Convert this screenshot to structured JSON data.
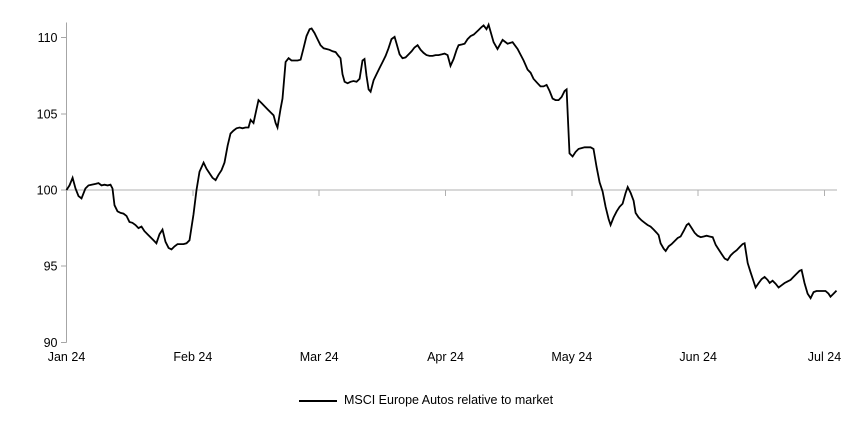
{
  "chart_data": {
    "type": "line",
    "title": "",
    "x_axis": {
      "unit": "months (Jan 2024 - Jul 2024)",
      "tick_labels": [
        "Jan 24",
        "Feb 24",
        "Mar 24",
        "Apr 24",
        "May 24",
        "Jun 24",
        "Jul 24"
      ],
      "tick_positions_months": [
        0,
        1,
        2,
        3,
        4,
        5,
        6
      ],
      "range_months": [
        0,
        6.095
      ]
    },
    "y_axis": {
      "tick_labels": [
        "90",
        "95",
        "100",
        "105",
        "110"
      ],
      "tick_values": [
        90,
        95,
        100,
        105,
        110
      ],
      "range": [
        90,
        111
      ],
      "baseline": 100
    },
    "grid": {
      "horizontal_lines_at": [
        100
      ],
      "month_ticks_on_baseline": true
    },
    "legend": {
      "position": "bottom-center",
      "items": [
        {
          "label": "MSCI Europe Autos relative to market",
          "color": "#000000",
          "marker": "line"
        }
      ]
    },
    "series": [
      {
        "name": "MSCI Europe Autos relative to market",
        "color": "#000000",
        "points": [
          [
            0.0,
            100.0
          ],
          [
            0.024,
            100.3
          ],
          [
            0.048,
            100.8
          ],
          [
            0.071,
            100.1
          ],
          [
            0.095,
            99.6
          ],
          [
            0.119,
            99.45
          ],
          [
            0.15,
            100.1
          ],
          [
            0.174,
            100.3
          ],
          [
            0.198,
            100.35
          ],
          [
            0.23,
            100.4
          ],
          [
            0.253,
            100.45
          ],
          [
            0.277,
            100.3
          ],
          [
            0.301,
            100.35
          ],
          [
            0.325,
            100.3
          ],
          [
            0.348,
            100.35
          ],
          [
            0.364,
            100.1
          ],
          [
            0.38,
            99.0
          ],
          [
            0.404,
            98.6
          ],
          [
            0.428,
            98.5
          ],
          [
            0.451,
            98.45
          ],
          [
            0.475,
            98.3
          ],
          [
            0.499,
            97.9
          ],
          [
            0.522,
            97.85
          ],
          [
            0.546,
            97.7
          ],
          [
            0.57,
            97.5
          ],
          [
            0.594,
            97.6
          ],
          [
            0.617,
            97.3
          ],
          [
            0.641,
            97.1
          ],
          [
            0.665,
            96.9
          ],
          [
            0.689,
            96.7
          ],
          [
            0.712,
            96.5
          ],
          [
            0.736,
            97.1
          ],
          [
            0.76,
            97.4
          ],
          [
            0.784,
            96.6
          ],
          [
            0.808,
            96.2
          ],
          [
            0.831,
            96.1
          ],
          [
            0.855,
            96.3
          ],
          [
            0.879,
            96.45
          ],
          [
            0.903,
            96.45
          ],
          [
            0.926,
            96.45
          ],
          [
            0.95,
            96.5
          ],
          [
            0.974,
            96.7
          ],
          [
            1.005,
            98.4
          ],
          [
            1.029,
            100.0
          ],
          [
            1.053,
            101.2
          ],
          [
            1.085,
            101.8
          ],
          [
            1.108,
            101.4
          ],
          [
            1.132,
            101.1
          ],
          [
            1.156,
            100.8
          ],
          [
            1.18,
            100.65
          ],
          [
            1.203,
            101.0
          ],
          [
            1.227,
            101.3
          ],
          [
            1.251,
            101.8
          ],
          [
            1.275,
            102.9
          ],
          [
            1.298,
            103.7
          ],
          [
            1.322,
            103.9
          ],
          [
            1.346,
            104.05
          ],
          [
            1.37,
            104.1
          ],
          [
            1.393,
            104.05
          ],
          [
            1.417,
            104.1
          ],
          [
            1.441,
            104.1
          ],
          [
            1.457,
            104.6
          ],
          [
            1.48,
            104.4
          ],
          [
            1.504,
            105.3
          ],
          [
            1.52,
            105.9
          ],
          [
            1.544,
            105.7
          ],
          [
            1.568,
            105.5
          ],
          [
            1.591,
            105.3
          ],
          [
            1.615,
            105.1
          ],
          [
            1.639,
            104.9
          ],
          [
            1.655,
            104.4
          ],
          [
            1.67,
            104.1
          ],
          [
            1.694,
            105.3
          ],
          [
            1.71,
            106.0
          ],
          [
            1.734,
            108.4
          ],
          [
            1.758,
            108.65
          ],
          [
            1.781,
            108.5
          ],
          [
            1.805,
            108.5
          ],
          [
            1.829,
            108.5
          ],
          [
            1.853,
            108.55
          ],
          [
            1.876,
            109.3
          ],
          [
            1.9,
            110.1
          ],
          [
            1.924,
            110.55
          ],
          [
            1.94,
            110.6
          ],
          [
            1.963,
            110.3
          ],
          [
            1.987,
            109.9
          ],
          [
            2.011,
            109.5
          ],
          [
            2.035,
            109.3
          ],
          [
            2.058,
            109.25
          ],
          [
            2.082,
            109.2
          ],
          [
            2.106,
            109.1
          ],
          [
            2.13,
            109.05
          ],
          [
            2.153,
            108.8
          ],
          [
            2.169,
            108.65
          ],
          [
            2.185,
            107.6
          ],
          [
            2.201,
            107.1
          ],
          [
            2.225,
            107.0
          ],
          [
            2.248,
            107.1
          ],
          [
            2.272,
            107.15
          ],
          [
            2.296,
            107.1
          ],
          [
            2.32,
            107.3
          ],
          [
            2.343,
            108.5
          ],
          [
            2.359,
            108.6
          ],
          [
            2.375,
            107.5
          ],
          [
            2.391,
            106.6
          ],
          [
            2.407,
            106.45
          ],
          [
            2.431,
            107.2
          ],
          [
            2.454,
            107.6
          ],
          [
            2.478,
            108.0
          ],
          [
            2.502,
            108.4
          ],
          [
            2.526,
            108.8
          ],
          [
            2.549,
            109.3
          ],
          [
            2.573,
            109.9
          ],
          [
            2.597,
            110.05
          ],
          [
            2.613,
            109.6
          ],
          [
            2.637,
            108.9
          ],
          [
            2.66,
            108.65
          ],
          [
            2.684,
            108.7
          ],
          [
            2.708,
            108.9
          ],
          [
            2.732,
            109.1
          ],
          [
            2.755,
            109.35
          ],
          [
            2.779,
            109.5
          ],
          [
            2.803,
            109.2
          ],
          [
            2.827,
            109.0
          ],
          [
            2.85,
            108.85
          ],
          [
            2.874,
            108.8
          ],
          [
            2.898,
            108.8
          ],
          [
            2.922,
            108.85
          ],
          [
            2.945,
            108.85
          ],
          [
            2.969,
            108.9
          ],
          [
            2.993,
            108.95
          ],
          [
            3.017,
            108.85
          ],
          [
            3.04,
            108.15
          ],
          [
            3.064,
            108.6
          ],
          [
            3.088,
            109.2
          ],
          [
            3.104,
            109.5
          ],
          [
            3.128,
            109.55
          ],
          [
            3.151,
            109.6
          ],
          [
            3.175,
            109.9
          ],
          [
            3.199,
            110.1
          ],
          [
            3.223,
            110.2
          ],
          [
            3.262,
            110.5
          ],
          [
            3.286,
            110.7
          ],
          [
            3.302,
            110.8
          ],
          [
            3.325,
            110.55
          ],
          [
            3.341,
            110.85
          ],
          [
            3.381,
            109.7
          ],
          [
            3.412,
            109.25
          ],
          [
            3.452,
            109.85
          ],
          [
            3.492,
            109.6
          ],
          [
            3.531,
            109.7
          ],
          [
            3.571,
            109.25
          ],
          [
            3.618,
            108.5
          ],
          [
            3.65,
            107.9
          ],
          [
            3.674,
            107.7
          ],
          [
            3.697,
            107.3
          ],
          [
            3.729,
            107.0
          ],
          [
            3.752,
            106.8
          ],
          [
            3.776,
            106.8
          ],
          [
            3.8,
            106.9
          ],
          [
            3.824,
            106.5
          ],
          [
            3.848,
            106.0
          ],
          [
            3.871,
            105.9
          ],
          [
            3.895,
            105.9
          ],
          [
            3.919,
            106.1
          ],
          [
            3.943,
            106.5
          ],
          [
            3.959,
            106.6
          ],
          [
            3.982,
            102.4
          ],
          [
            4.006,
            102.2
          ],
          [
            4.03,
            102.5
          ],
          [
            4.054,
            102.7
          ],
          [
            4.077,
            102.75
          ],
          [
            4.101,
            102.8
          ],
          [
            4.125,
            102.8
          ],
          [
            4.149,
            102.8
          ],
          [
            4.172,
            102.7
          ],
          [
            4.196,
            101.5
          ],
          [
            4.22,
            100.5
          ],
          [
            4.244,
            99.9
          ],
          [
            4.267,
            98.9
          ],
          [
            4.291,
            98.1
          ],
          [
            4.307,
            97.7
          ],
          [
            4.331,
            98.2
          ],
          [
            4.355,
            98.6
          ],
          [
            4.378,
            98.9
          ],
          [
            4.402,
            99.1
          ],
          [
            4.426,
            99.8
          ],
          [
            4.442,
            100.2
          ],
          [
            4.466,
            99.8
          ],
          [
            4.489,
            99.3
          ],
          [
            4.505,
            98.5
          ],
          [
            4.529,
            98.2
          ],
          [
            4.553,
            98.0
          ],
          [
            4.577,
            97.85
          ],
          [
            4.6,
            97.7
          ],
          [
            4.624,
            97.6
          ],
          [
            4.648,
            97.4
          ],
          [
            4.671,
            97.2
          ],
          [
            4.687,
            97.05
          ],
          [
            4.703,
            96.5
          ],
          [
            4.727,
            96.15
          ],
          [
            4.743,
            96.0
          ],
          [
            4.766,
            96.3
          ],
          [
            4.79,
            96.45
          ],
          [
            4.814,
            96.65
          ],
          [
            4.838,
            96.85
          ],
          [
            4.861,
            96.95
          ],
          [
            4.885,
            97.3
          ],
          [
            4.909,
            97.7
          ],
          [
            4.925,
            97.8
          ],
          [
            4.949,
            97.5
          ],
          [
            4.972,
            97.2
          ],
          [
            4.996,
            97.0
          ],
          [
            5.02,
            96.9
          ],
          [
            5.044,
            96.95
          ],
          [
            5.067,
            97.0
          ],
          [
            5.091,
            96.95
          ],
          [
            5.115,
            96.9
          ],
          [
            5.139,
            96.4
          ],
          [
            5.162,
            96.1
          ],
          [
            5.186,
            95.8
          ],
          [
            5.21,
            95.5
          ],
          [
            5.233,
            95.4
          ],
          [
            5.257,
            95.7
          ],
          [
            5.281,
            95.9
          ],
          [
            5.305,
            96.05
          ],
          [
            5.328,
            96.25
          ],
          [
            5.352,
            96.45
          ],
          [
            5.368,
            96.5
          ],
          [
            5.392,
            95.2
          ],
          [
            5.415,
            94.6
          ],
          [
            5.439,
            94.0
          ],
          [
            5.455,
            93.6
          ],
          [
            5.479,
            93.9
          ],
          [
            5.502,
            94.15
          ],
          [
            5.526,
            94.3
          ],
          [
            5.55,
            94.1
          ],
          [
            5.566,
            93.9
          ],
          [
            5.589,
            94.05
          ],
          [
            5.613,
            93.85
          ],
          [
            5.637,
            93.6
          ],
          [
            5.661,
            93.75
          ],
          [
            5.684,
            93.9
          ],
          [
            5.708,
            94.0
          ],
          [
            5.732,
            94.1
          ],
          [
            5.755,
            94.3
          ],
          [
            5.779,
            94.5
          ],
          [
            5.803,
            94.7
          ],
          [
            5.819,
            94.75
          ],
          [
            5.842,
            93.9
          ],
          [
            5.866,
            93.2
          ],
          [
            5.89,
            92.9
          ],
          [
            5.914,
            93.3
          ],
          [
            5.937,
            93.37
          ],
          [
            5.961,
            93.37
          ],
          [
            5.985,
            93.37
          ],
          [
            6.008,
            93.37
          ],
          [
            6.032,
            93.2
          ],
          [
            6.048,
            93.0
          ],
          [
            6.072,
            93.2
          ],
          [
            6.095,
            93.4
          ]
        ]
      }
    ]
  },
  "colors": {
    "background": "#ffffff",
    "series_line": "#000000",
    "axis_line": "#a6a6a6",
    "gridline": "#b0b0b0",
    "text": "#000000"
  }
}
